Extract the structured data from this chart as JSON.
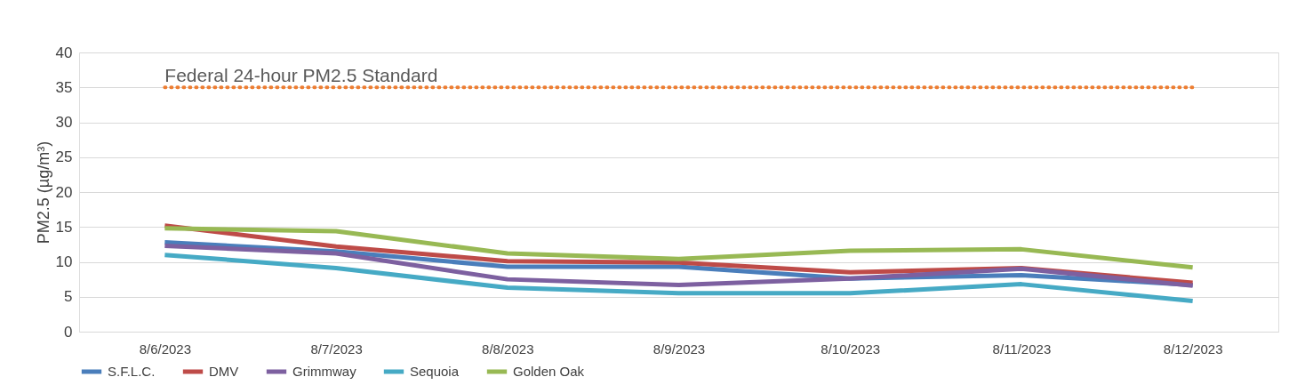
{
  "chart_data": {
    "type": "line",
    "ylabel": "PM2.5 (µg/m³)",
    "categories": [
      "8/6/2023",
      "8/7/2023",
      "8/8/2023",
      "8/9/2023",
      "8/10/2023",
      "8/11/2023",
      "8/12/2023"
    ],
    "series": [
      {
        "name": "S.F.L.C.",
        "color": "#4a7ebb",
        "values": [
          12.8,
          11.5,
          9.3,
          9.3,
          7.6,
          8.1,
          6.7
        ]
      },
      {
        "name": "DMV",
        "color": "#be4b48",
        "values": [
          15.2,
          12.2,
          10.1,
          9.9,
          8.5,
          9.1,
          7.0
        ]
      },
      {
        "name": "Grimmway",
        "color": "#7d60a0",
        "values": [
          12.3,
          11.2,
          7.5,
          6.7,
          7.6,
          9.0,
          6.6
        ]
      },
      {
        "name": "Sequoia",
        "color": "#46aac5",
        "values": [
          11.0,
          9.1,
          6.3,
          5.5,
          5.5,
          6.8,
          4.4
        ]
      },
      {
        "name": "Golden Oak",
        "color": "#98b954",
        "values": [
          14.8,
          14.4,
          11.2,
          10.4,
          11.6,
          11.8,
          9.2
        ]
      }
    ],
    "ylim": [
      0,
      40
    ],
    "yticks": [
      0,
      5,
      10,
      15,
      20,
      25,
      30,
      35,
      40
    ],
    "ref_lines": [
      {
        "axis": "y",
        "value": 35,
        "label": "Federal 24-hour PM2.5 Standard",
        "color": "#ed7d31",
        "line_style": "dotted"
      }
    ],
    "grid": "y",
    "legend": "bottom",
    "marker": "none",
    "line_style": "solid"
  }
}
